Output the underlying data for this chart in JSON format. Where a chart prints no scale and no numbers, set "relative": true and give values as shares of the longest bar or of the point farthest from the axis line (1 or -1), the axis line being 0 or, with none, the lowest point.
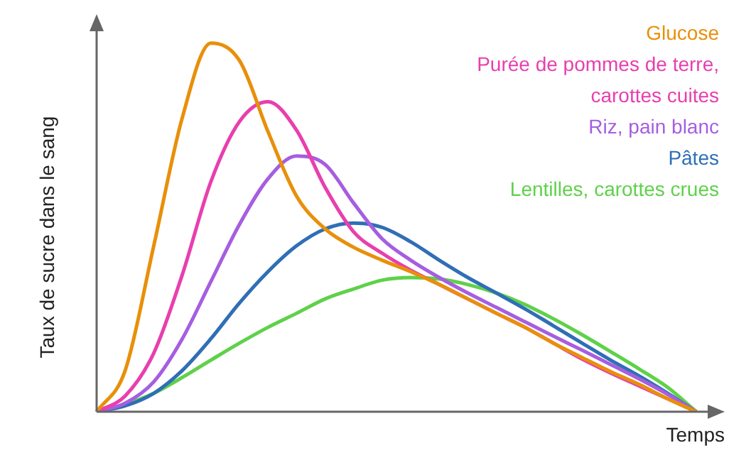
{
  "chart_data": {
    "type": "line",
    "relative": true,
    "xlabel": "Temps",
    "ylabel": "Taux de sucre dans le sang",
    "legend": "top right",
    "marker": "none",
    "categories": [
      null,
      null,
      null,
      null,
      null,
      null,
      null,
      null,
      null,
      null,
      null,
      null,
      null,
      null,
      null,
      null,
      null,
      null,
      null,
      null,
      null,
      null
    ],
    "series": [
      {
        "name": "Glucose",
        "color": "#e8900a",
        "values": [
          0,
          0.112,
          0.45,
          0.798,
          1,
          0.953,
          0.76,
          0.585,
          0.496,
          0.446,
          0.411,
          0.38,
          0.345,
          0.306,
          0.267,
          0.229,
          0.186,
          0.147,
          0.109,
          0.074,
          0.035,
          0
        ]
      },
      {
        "name": "Purée de pommes de terre, carottes cuites",
        "color": "#e83fae",
        "values": [
          0,
          0.043,
          0.159,
          0.372,
          0.624,
          0.787,
          0.841,
          0.764,
          0.609,
          0.488,
          0.43,
          0.384,
          0.345,
          0.306,
          0.267,
          0.229,
          0.186,
          0.143,
          0.105,
          0.07,
          0.035,
          0
        ]
      },
      {
        "name": "Riz, pain blanc",
        "color": "#a65ee0",
        "values": [
          0,
          0.023,
          0.081,
          0.198,
          0.353,
          0.508,
          0.632,
          0.694,
          0.671,
          0.566,
          0.469,
          0.411,
          0.364,
          0.322,
          0.283,
          0.244,
          0.205,
          0.167,
          0.128,
          0.089,
          0.047,
          0
        ]
      },
      {
        "name": "Pâtes",
        "color": "#2f6fb5",
        "values": [
          0,
          0.016,
          0.05,
          0.112,
          0.198,
          0.295,
          0.38,
          0.45,
          0.496,
          0.512,
          0.5,
          0.461,
          0.411,
          0.364,
          0.322,
          0.279,
          0.233,
          0.186,
          0.14,
          0.097,
          0.05,
          0
        ]
      },
      {
        "name": "Lentilles, carottes crues",
        "color": "#5fd14a",
        "values": [
          0,
          0.02,
          0.05,
          0.093,
          0.14,
          0.186,
          0.229,
          0.267,
          0.306,
          0.333,
          0.357,
          0.364,
          0.36,
          0.345,
          0.322,
          0.291,
          0.252,
          0.209,
          0.163,
          0.116,
          0.066,
          0
        ]
      }
    ]
  }
}
